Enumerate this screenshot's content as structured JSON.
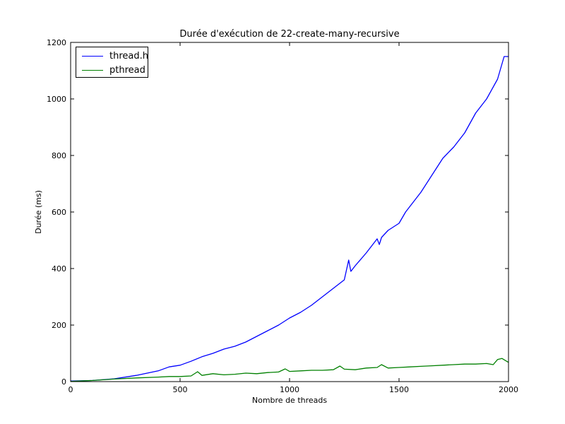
{
  "chart_data": {
    "type": "line",
    "title": "Durée d'exécution de 22-create-many-recursive",
    "xlabel": "Nombre de threads",
    "ylabel": "Durée (ms)",
    "xlim": [
      0,
      2000
    ],
    "ylim": [
      0,
      1200
    ],
    "xticks": [
      "0",
      "500",
      "1000",
      "1500",
      "2000"
    ],
    "yticks": [
      "0",
      "200",
      "400",
      "600",
      "800",
      "1000",
      "1200"
    ],
    "grid": false,
    "legend_position": "top-left",
    "series": [
      {
        "name": "thread.h",
        "color": "#0000ff",
        "x": [
          0,
          100,
          200,
          300,
          400,
          450,
          500,
          550,
          600,
          650,
          700,
          750,
          800,
          850,
          900,
          950,
          1000,
          1050,
          1100,
          1150,
          1200,
          1250,
          1270,
          1280,
          1300,
          1350,
          1400,
          1410,
          1420,
          1450,
          1500,
          1530,
          1550,
          1600,
          1650,
          1700,
          1750,
          1800,
          1850,
          1900,
          1950,
          1980,
          2000
        ],
        "y": [
          2,
          4,
          10,
          22,
          38,
          52,
          58,
          72,
          88,
          100,
          115,
          125,
          140,
          160,
          180,
          200,
          225,
          245,
          270,
          300,
          330,
          360,
          430,
          390,
          410,
          455,
          505,
          485,
          510,
          535,
          560,
          600,
          620,
          670,
          730,
          790,
          830,
          880,
          950,
          1000,
          1070,
          1150,
          1150
        ]
      },
      {
        "name": "pthread",
        "color": "#008000",
        "x": [
          0,
          100,
          200,
          300,
          400,
          450,
          500,
          550,
          580,
          600,
          650,
          700,
          750,
          800,
          850,
          900,
          950,
          980,
          1000,
          1050,
          1100,
          1150,
          1200,
          1230,
          1250,
          1300,
          1350,
          1400,
          1420,
          1450,
          1500,
          1550,
          1600,
          1650,
          1700,
          1750,
          1800,
          1850,
          1900,
          1930,
          1950,
          1970,
          2000
        ],
        "y": [
          1,
          4,
          9,
          13,
          16,
          18,
          18,
          20,
          35,
          22,
          28,
          24,
          26,
          30,
          28,
          32,
          34,
          45,
          36,
          38,
          40,
          40,
          42,
          55,
          44,
          42,
          48,
          50,
          60,
          48,
          50,
          52,
          54,
          56,
          58,
          60,
          62,
          62,
          64,
          60,
          78,
          82,
          68
        ]
      }
    ]
  }
}
